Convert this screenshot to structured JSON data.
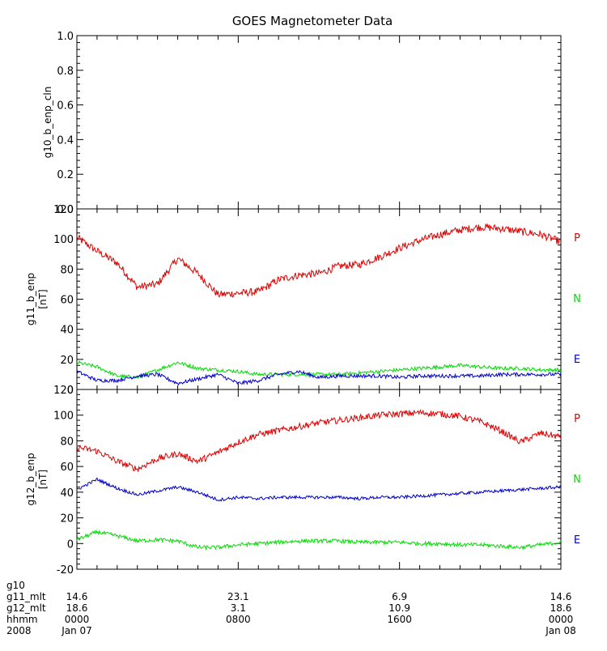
{
  "title": "GOES Magnetometer Data",
  "colors": {
    "P": "#e00000",
    "N": "#00dd00",
    "E": "#0000cc",
    "axis": "#000000"
  },
  "chart_data": [
    {
      "type": "line",
      "ylabel": "g10_b_enp_cln",
      "ylim": [
        0,
        1
      ],
      "yticks": [
        "0.0",
        "0.2",
        "0.4",
        "0.6",
        "0.8",
        "1.0"
      ],
      "ytick_values": [
        0,
        0.2,
        0.4,
        0.6,
        0.8,
        1.0
      ],
      "series": []
    },
    {
      "type": "line",
      "ylabel": "g11_b_enp",
      "yunit": "[nT]",
      "ylim": [
        0,
        120
      ],
      "yticks": [
        "0",
        "20",
        "40",
        "60",
        "80",
        "100",
        "120"
      ],
      "ytick_values": [
        0,
        20,
        40,
        60,
        80,
        100,
        120
      ],
      "x": [
        0,
        1,
        2,
        3,
        4,
        5,
        6,
        7,
        8,
        9,
        10,
        11,
        12,
        13,
        14,
        15,
        16,
        17,
        18,
        19,
        20,
        21,
        22,
        23,
        24
      ],
      "series": [
        {
          "name": "P",
          "color": "#e00000",
          "noise": 2.5,
          "values": [
            101,
            92,
            84,
            68,
            70,
            87,
            77,
            63,
            64,
            65,
            73,
            76,
            77,
            82,
            83,
            88,
            94,
            99,
            103,
            106,
            108,
            107,
            105,
            103,
            98
          ]
        },
        {
          "name": "N",
          "color": "#00dd00",
          "noise": 1.2,
          "values": [
            18,
            15,
            9,
            8,
            13,
            18,
            14,
            13,
            12,
            10,
            10,
            10,
            10,
            10,
            11,
            12,
            13,
            14,
            15,
            16,
            15,
            14,
            14,
            13,
            13
          ]
        },
        {
          "name": "E",
          "color": "#0000cc",
          "noise": 1.2,
          "values": [
            12,
            6,
            6,
            9,
            10,
            4,
            7,
            10,
            4,
            6,
            10,
            12,
            8,
            9,
            9,
            9,
            8,
            9,
            9,
            9,
            9,
            10,
            10,
            10,
            10
          ]
        }
      ]
    },
    {
      "type": "line",
      "ylabel": "g12_b_enp",
      "yunit": "[nT]",
      "ylim": [
        -20,
        120
      ],
      "yticks": [
        "-20",
        "0",
        "20",
        "40",
        "60",
        "80",
        "100",
        "120"
      ],
      "ytick_values": [
        -20,
        0,
        20,
        40,
        60,
        80,
        100,
        120
      ],
      "x": [
        0,
        1,
        2,
        3,
        4,
        5,
        6,
        7,
        8,
        9,
        10,
        11,
        12,
        13,
        14,
        15,
        16,
        17,
        18,
        19,
        20,
        21,
        22,
        23,
        24
      ],
      "series": [
        {
          "name": "P",
          "color": "#e00000",
          "noise": 2.5,
          "values": [
            75,
            72,
            64,
            58,
            66,
            70,
            64,
            71,
            79,
            85,
            88,
            91,
            94,
            96,
            98,
            100,
            101,
            102,
            101,
            99,
            95,
            88,
            79,
            86,
            83
          ]
        },
        {
          "name": "N",
          "color": "#00dd00",
          "noise": 1.5,
          "values": [
            3,
            9,
            6,
            2,
            3,
            2,
            -3,
            -3,
            -1,
            0,
            1,
            2,
            2,
            2,
            1,
            1,
            1,
            0,
            0,
            -1,
            -1,
            -2,
            -3,
            -1,
            1
          ]
        },
        {
          "name": "E",
          "color": "#0000cc",
          "noise": 1.2,
          "values": [
            42,
            50,
            43,
            38,
            41,
            44,
            40,
            34,
            36,
            35,
            36,
            36,
            36,
            36,
            35,
            36,
            36,
            37,
            38,
            39,
            40,
            41,
            42,
            43,
            44
          ]
        }
      ]
    }
  ],
  "xaxis": {
    "rows": [
      {
        "name": "g10",
        "values": [
          "",
          "",
          "",
          ""
        ]
      },
      {
        "name": "g11_mlt",
        "values": [
          "14.6",
          "23.1",
          "6.9",
          "14.6"
        ]
      },
      {
        "name": "g12_mlt",
        "values": [
          "18.6",
          "3.1",
          "10.9",
          "18.6"
        ]
      },
      {
        "name": "hhmm",
        "values": [
          "0000",
          "0800",
          "1600",
          "0000"
        ]
      },
      {
        "name": "2008",
        "values": [
          "Jan 07",
          "",
          "",
          "Jan 08"
        ]
      }
    ],
    "major_ticks_hours": [
      0,
      8,
      16,
      24
    ],
    "minor_ticks_per_hour": 1
  }
}
